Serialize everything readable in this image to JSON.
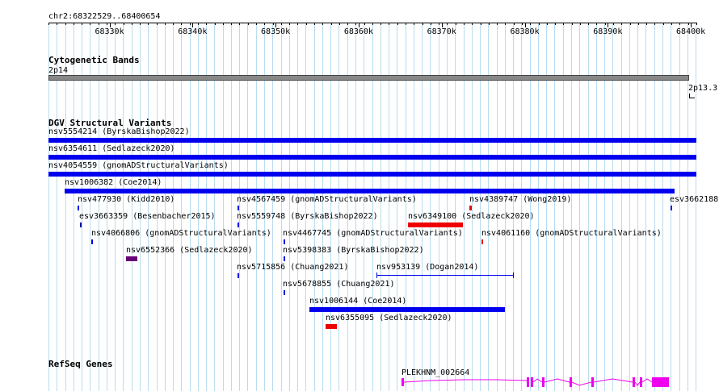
{
  "ruler": {
    "position_label": "chr2:68322529..68400654",
    "ticks": [
      "68330k",
      "68340k",
      "68350k",
      "68360k",
      "68370k",
      "68380k",
      "68390k",
      "68400k"
    ]
  },
  "tracks": {
    "cytoband": {
      "title": "Cytogenetic Bands",
      "band_label": "2p14",
      "next_band_label": "2p13.3"
    },
    "dgv": {
      "title": "DGV Structural Variants",
      "features": [
        {
          "label": "nsv5554214 (ByrskaBishop2022)",
          "color": "#0000ee"
        },
        {
          "label": "nsv6354611 (Sedlazeck2020)",
          "color": "#0000ee"
        },
        {
          "label": "nsv4054559 (gnomADStructuralVariants)",
          "color": "#0000ee"
        },
        {
          "label": "nsv1006382 (Coe2014)",
          "color": "#0000ee"
        },
        {
          "label": "nsv477930 (Kidd2010)",
          "color": "#0000ee"
        },
        {
          "label": "nsv4567459 (gnomADStructuralVariants)",
          "color": "#0000ee"
        },
        {
          "label": "nsv4389747 (Wong2019)",
          "color": "#ee0000"
        },
        {
          "label": "esv3662188",
          "color": "#0000ee"
        },
        {
          "label": "esv3663359 (Besenbacher2015)",
          "color": "#0000aa"
        },
        {
          "label": "nsv5559748 (ByrskaBishop2022)",
          "color": "#0000ee"
        },
        {
          "label": "nsv6349100 (Sedlazeck2020)",
          "color": "#ee0000"
        },
        {
          "label": "nsv4066806 (gnomADStructuralVariants)",
          "color": "#0000ee"
        },
        {
          "label": "nsv4467745 (gnomADStructuralVariants)",
          "color": "#0000ee"
        },
        {
          "label": "nsv4061160 (gnomADStructuralVariants)",
          "color": "#ee0000"
        },
        {
          "label": "nsv6552366 (Sedlazeck2020)",
          "color": "#660077"
        },
        {
          "label": "nsv5398383 (ByrskaBishop2022)",
          "color": "#0000ee"
        },
        {
          "label": "nsv5715856 (Chuang2021)",
          "color": "#0000ee"
        },
        {
          "label": "nsv953139 (Dogan2014)",
          "color": "#0000ee"
        },
        {
          "label": "nsv5678855 (Chuang2021)",
          "color": "#0000ee"
        },
        {
          "label": "nsv1006144 (Coe2014)",
          "color": "#0000ee"
        },
        {
          "label": "nsv6355095 (Sedlazeck2020)",
          "color": "#ee0000"
        }
      ]
    },
    "refseq": {
      "title": "RefSeq Genes",
      "gene_label": "PLEKHNM_002664",
      "color": "#ee00ee"
    }
  }
}
